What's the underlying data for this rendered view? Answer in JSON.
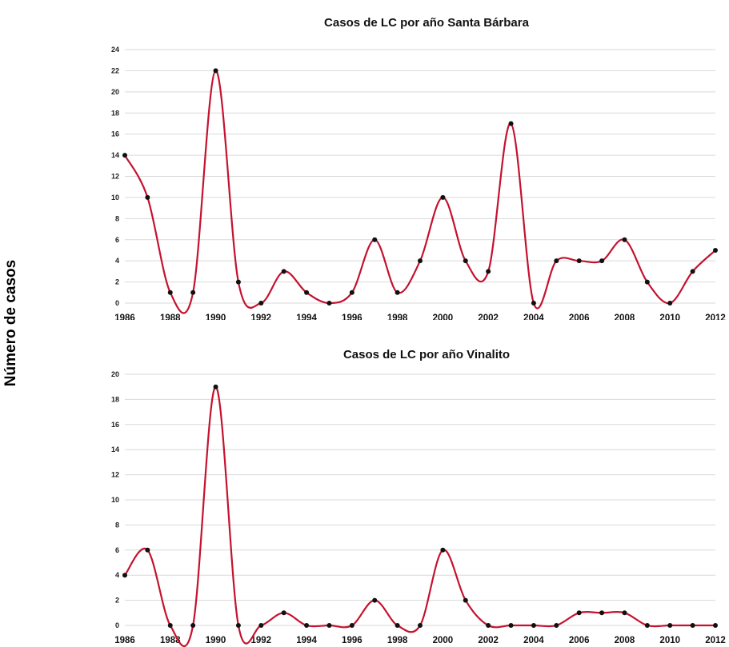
{
  "ylabel": "Número de casos",
  "colors": {
    "line": "#c4122f",
    "marker": "#111111",
    "grid": "#d9d9d9"
  },
  "chart_data": [
    {
      "type": "line",
      "title": "Casos de LC por año Santa Bárbara",
      "ylim": [
        0,
        24
      ],
      "yticks": [
        0,
        2,
        4,
        6,
        8,
        10,
        12,
        14,
        16,
        18,
        20,
        22,
        24
      ],
      "xlim": [
        1986,
        2012
      ],
      "xticks": [
        1986,
        1988,
        1990,
        1992,
        1994,
        1996,
        1998,
        2000,
        2002,
        2004,
        2006,
        2008,
        2010,
        2012
      ],
      "grid": true,
      "x": [
        1986,
        1987,
        1988,
        1989,
        1990,
        1991,
        1992,
        1993,
        1994,
        1995,
        1996,
        1997,
        1998,
        1999,
        2000,
        2001,
        2002,
        2003,
        2004,
        2005,
        2006,
        2007,
        2008,
        2009,
        2010,
        2011,
        2012
      ],
      "values": [
        14,
        10,
        1,
        1,
        22,
        2,
        0,
        3,
        1,
        0,
        1,
        6,
        1,
        4,
        10,
        4,
        3,
        17,
        0,
        4,
        4,
        4,
        6,
        2,
        0,
        3,
        5
      ]
    },
    {
      "type": "line",
      "title": "Casos de LC por año Vinalito",
      "ylim": [
        0,
        20
      ],
      "yticks": [
        0,
        2,
        4,
        6,
        8,
        10,
        12,
        14,
        16,
        18,
        20
      ],
      "xlim": [
        1986,
        2012
      ],
      "xticks": [
        1986,
        1988,
        1990,
        1992,
        1994,
        1996,
        1998,
        2000,
        2002,
        2004,
        2006,
        2008,
        2010,
        2012
      ],
      "grid": true,
      "x": [
        1986,
        1987,
        1988,
        1989,
        1990,
        1991,
        1992,
        1993,
        1994,
        1995,
        1996,
        1997,
        1998,
        1999,
        2000,
        2001,
        2002,
        2003,
        2004,
        2005,
        2006,
        2007,
        2008,
        2009,
        2010,
        2011,
        2012
      ],
      "values": [
        4,
        6,
        0,
        0,
        19,
        0,
        0,
        1,
        0,
        0,
        0,
        2,
        0,
        0,
        6,
        2,
        0,
        0,
        0,
        0,
        1,
        1,
        1,
        0,
        0,
        0,
        0
      ]
    }
  ]
}
